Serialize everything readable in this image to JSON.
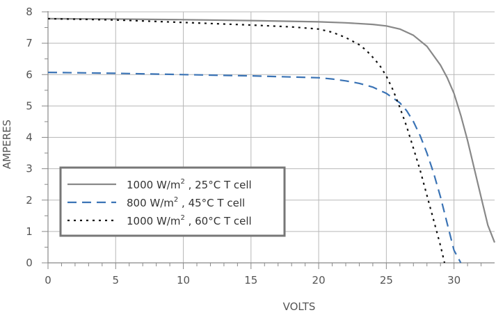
{
  "chart_data": {
    "type": "line",
    "xlabel": "VOLTS",
    "ylabel": "AMPERES",
    "xlim": [
      0,
      33
    ],
    "ylim": [
      0,
      8
    ],
    "x_ticks": [
      0,
      5,
      10,
      15,
      20,
      25,
      30
    ],
    "y_ticks": [
      0,
      1,
      2,
      3,
      4,
      5,
      6,
      7,
      8
    ],
    "grid": "major + minor ticks",
    "legend_position": "lower-left",
    "series": [
      {
        "name": "1000 W/m², 25°C T cell",
        "legend_main": "1000 W/m",
        "legend_sup": "2",
        "legend_rest": " , 25°C T cell",
        "style": "solid",
        "color": "#888888",
        "x": [
          0,
          5,
          10,
          15,
          20,
          22,
          24,
          25,
          26,
          27,
          28,
          29,
          29.5,
          30,
          30.5,
          31,
          31.5,
          32,
          32.5,
          33
        ],
        "y": [
          7.78,
          7.77,
          7.75,
          7.72,
          7.68,
          7.65,
          7.6,
          7.55,
          7.45,
          7.25,
          6.9,
          6.3,
          5.9,
          5.4,
          4.7,
          3.9,
          3.0,
          2.1,
          1.2,
          0.65
        ]
      },
      {
        "name": "800 W/m², 45°C T cell",
        "legend_main": "800 W/m",
        "legend_sup": "2",
        "legend_rest": " , 45°C T cell",
        "style": "dashed",
        "color": "#3a73b5",
        "x": [
          0,
          5,
          10,
          15,
          20,
          21,
          22,
          23,
          24,
          25,
          26,
          26.5,
          27,
          27.5,
          28,
          28.5,
          29,
          29.5,
          30,
          30.5
        ],
        "y": [
          6.07,
          6.04,
          6.0,
          5.96,
          5.9,
          5.86,
          5.8,
          5.72,
          5.6,
          5.4,
          5.1,
          4.85,
          4.5,
          4.05,
          3.5,
          2.85,
          2.1,
          1.25,
          0.4,
          0.0
        ]
      },
      {
        "name": "1000 W/m², 60°C T cell",
        "legend_main": "1000 W/m",
        "legend_sup": "2",
        "legend_rest": " , 60°C T cell",
        "style": "dotted",
        "color": "#111111",
        "x": [
          0,
          5,
          10,
          15,
          18,
          20,
          21,
          22,
          23,
          23.5,
          24,
          24.5,
          25,
          25.5,
          26,
          26.5,
          27,
          27.5,
          28,
          28.5,
          29,
          29.3
        ],
        "y": [
          7.78,
          7.74,
          7.66,
          7.58,
          7.52,
          7.45,
          7.35,
          7.18,
          6.95,
          6.78,
          6.55,
          6.3,
          5.95,
          5.5,
          4.95,
          4.35,
          3.65,
          2.95,
          2.15,
          1.35,
          0.55,
          0.0
        ]
      }
    ]
  }
}
